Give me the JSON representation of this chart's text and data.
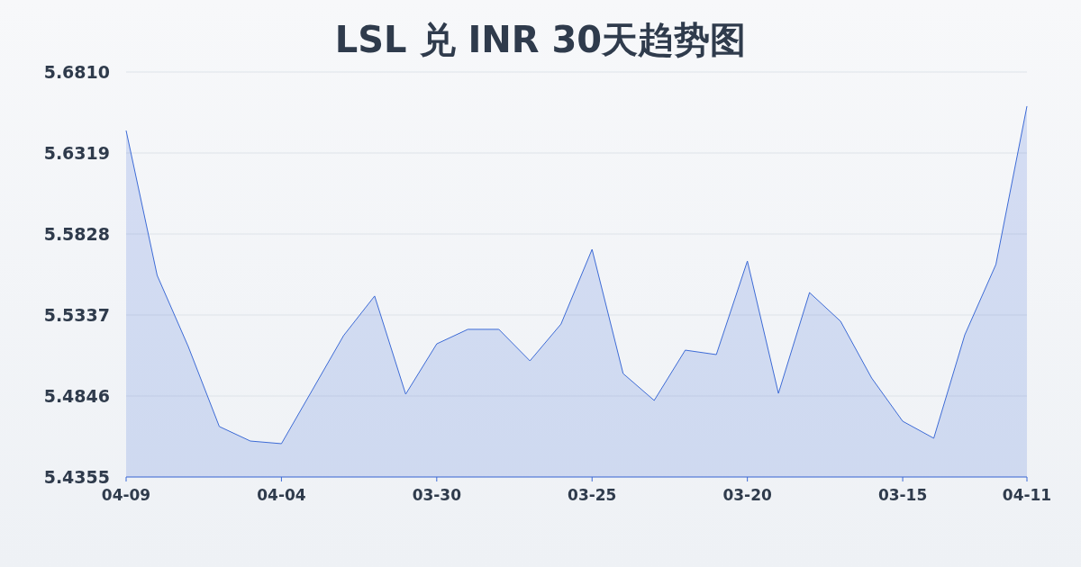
{
  "chart_data": {
    "type": "area",
    "title": "LSL 兑 INR 30天趋势图",
    "categories": [
      "04-09",
      null,
      null,
      null,
      null,
      "04-04",
      null,
      null,
      null,
      null,
      "03-30",
      null,
      null,
      null,
      null,
      "03-25",
      null,
      null,
      null,
      null,
      "03-20",
      null,
      null,
      null,
      null,
      "03-15",
      null,
      null,
      null,
      "04-11"
    ],
    "series": [
      {
        "color": "#3d6bd6",
        "values": [
          5.6455,
          5.5577,
          5.5146,
          5.4661,
          5.4573,
          5.4557,
          5.4884,
          5.5212,
          5.5452,
          5.4857,
          5.5162,
          5.525,
          5.525,
          5.5059,
          5.5282,
          5.5735,
          5.4982,
          5.4819,
          5.5124,
          5.5097,
          5.5664,
          5.4862,
          5.5473,
          5.5299,
          5.4955,
          5.4693,
          5.459,
          5.5217,
          5.5643,
          5.6603
        ]
      }
    ],
    "ylim": [
      5.4355,
      5.681
    ],
    "yticks": [
      5.4355,
      5.4846,
      5.5337,
      5.5828,
      5.6319,
      {
        "value": 5.681,
        "label": "5.6810"
      }
    ],
    "grid": "y"
  }
}
